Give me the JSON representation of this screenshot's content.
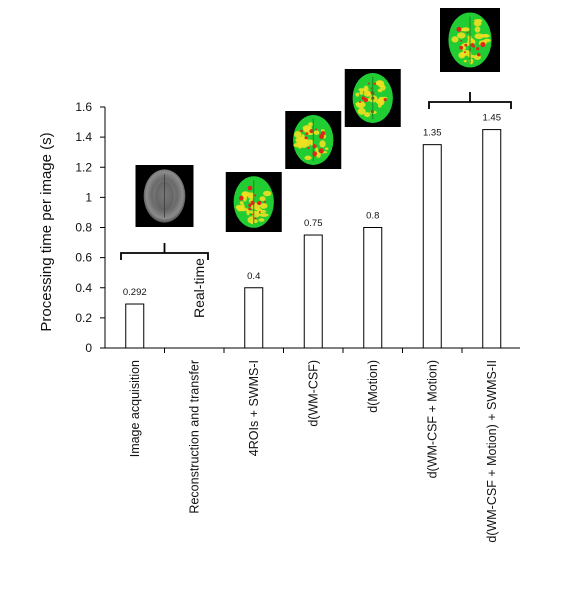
{
  "chart_data": {
    "type": "bar",
    "categories": [
      "Image acquisition",
      "Reconstruction and transfer",
      "4ROIs + SWMS-I",
      "d(WM-CSF)",
      "d(Motion)",
      "d(WM-CSF + Motion)",
      "d(WM-CSF + Motion) + SWMS-II"
    ],
    "values": [
      0.292,
      0,
      0.4,
      0.75,
      0.8,
      1.35,
      1.45
    ],
    "data_labels": [
      "0.292",
      "",
      "0.4",
      "0.75",
      "0.8",
      "1.35",
      "1.45"
    ],
    "yticks": [
      "0",
      "0.2",
      "0.4",
      "0.6",
      "0.8",
      "1",
      "1.2",
      "1.4",
      "1.6"
    ],
    "ylabel": "Processing time per image (s)",
    "xlabel": "",
    "title": "",
    "ylim": [
      0,
      1.6
    ],
    "grid": false,
    "annotations": {
      "realtime_label": "Real-time",
      "brain_images": [
        {
          "name": "raw-brain-image",
          "style": "grayscale",
          "over": [
            0
          ]
        },
        {
          "name": "brain-map-4rois",
          "style": "heatmap",
          "over": [
            2
          ]
        },
        {
          "name": "brain-map-wm-csf",
          "style": "heatmap",
          "over": [
            3
          ]
        },
        {
          "name": "brain-map-motion",
          "style": "heatmap",
          "over": [
            4
          ]
        },
        {
          "name": "brain-map-combined",
          "style": "heatmap",
          "over": [
            5,
            6
          ]
        }
      ]
    },
    "colors": {
      "bar_fill": "#ffffff",
      "bar_stroke": "#000000",
      "heat_green": "#22cc33",
      "heat_yellow": "#f0e020",
      "heat_red": "#e02818",
      "image_background": "#000000"
    }
  }
}
